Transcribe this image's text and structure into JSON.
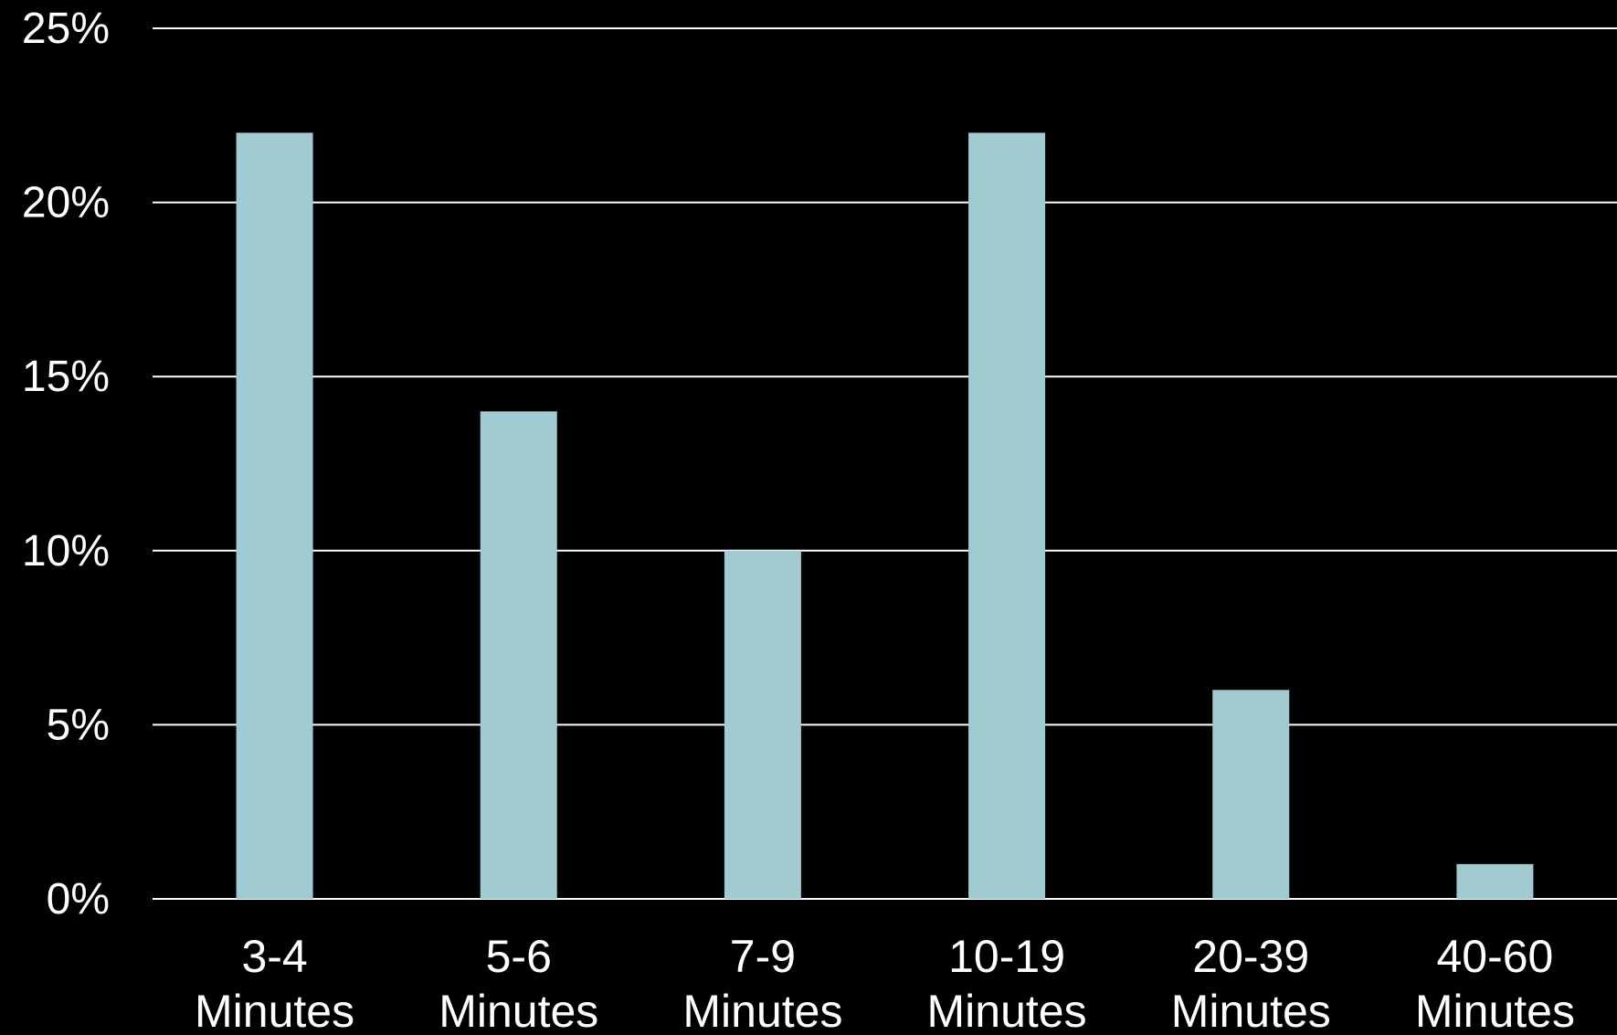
{
  "chart_data": {
    "type": "bar",
    "categories": [
      [
        "3-4",
        "Minutes"
      ],
      [
        "5-6",
        "Minutes"
      ],
      [
        "7-9",
        "Minutes"
      ],
      [
        "10-19",
        "Minutes"
      ],
      [
        "20-39",
        "Minutes"
      ],
      [
        "40-60",
        "Minutes"
      ]
    ],
    "values": [
      22,
      14,
      10,
      22,
      6,
      1
    ],
    "value_unit": "%",
    "ylim": [
      0,
      25
    ],
    "yticks": [
      0,
      5,
      10,
      15,
      20,
      25
    ],
    "ytick_labels": [
      "0%",
      "5%",
      "10%",
      "15%",
      "20%",
      "25%"
    ],
    "grid": true,
    "title": "",
    "xlabel": "",
    "ylabel": "",
    "colors": {
      "background": "#000000",
      "bar": "#9fcbd1",
      "grid": "#ffffff",
      "text": "#ffffff"
    }
  }
}
